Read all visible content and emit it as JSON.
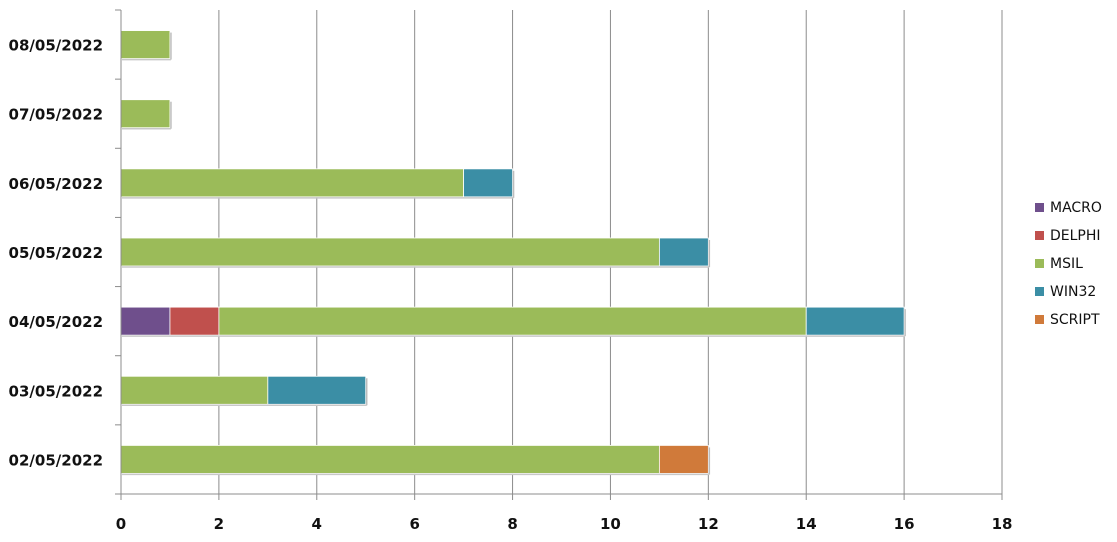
{
  "chart_data": {
    "type": "bar",
    "orientation": "horizontal",
    "stacked": true,
    "categories": [
      "02/05/2022",
      "03/05/2022",
      "04/05/2022",
      "05/05/2022",
      "06/05/2022",
      "07/05/2022",
      "08/05/2022"
    ],
    "series": [
      {
        "name": "MACRO",
        "color": "#6f4f8c",
        "values": [
          0,
          0,
          1,
          0,
          0,
          0,
          0
        ]
      },
      {
        "name": "DELPHI",
        "color": "#c0504d",
        "values": [
          0,
          0,
          1,
          0,
          0,
          0,
          0
        ]
      },
      {
        "name": "MSIL",
        "color": "#9bbb59",
        "values": [
          11,
          3,
          12,
          11,
          7,
          1,
          1
        ]
      },
      {
        "name": "WIN32",
        "color": "#3b8ea5",
        "values": [
          0,
          2,
          2,
          1,
          1,
          0,
          0
        ]
      },
      {
        "name": "SCRIPT",
        "color": "#d07a3a",
        "values": [
          1,
          0,
          0,
          0,
          0,
          0,
          0
        ]
      }
    ],
    "xlim": [
      0,
      18
    ],
    "xticks": [
      "0",
      "2",
      "4",
      "6",
      "8",
      "10",
      "12",
      "14",
      "16",
      "18"
    ],
    "grid": true,
    "legend_position": "right"
  }
}
